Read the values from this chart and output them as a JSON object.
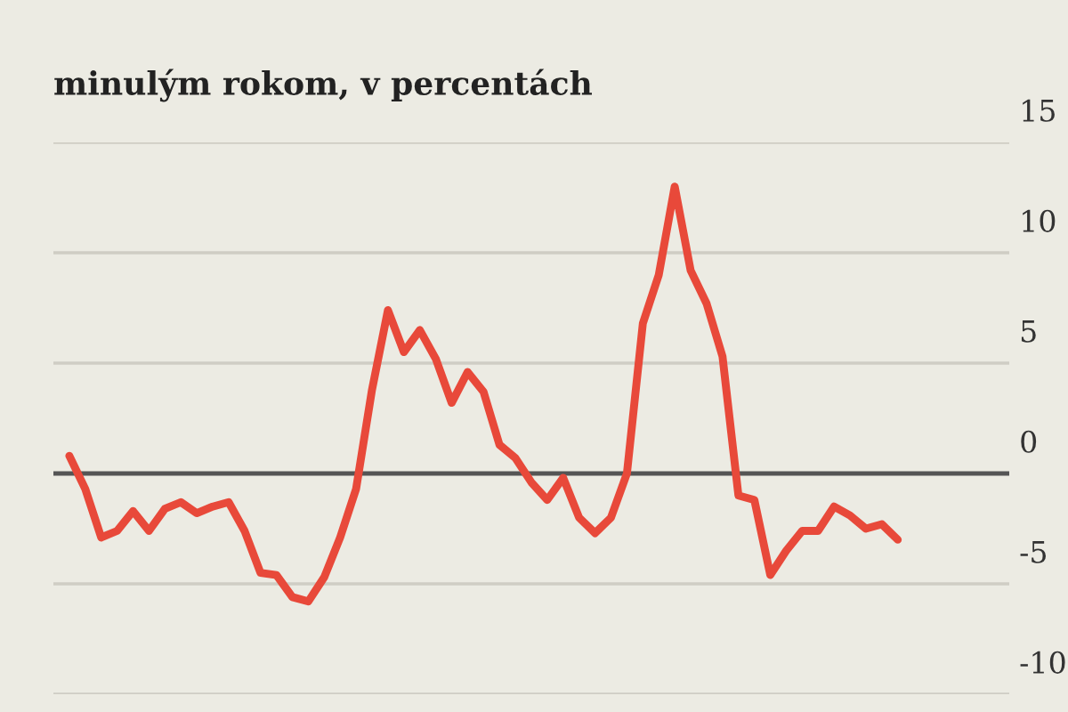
{
  "chart_data": {
    "type": "line",
    "title": "minulým rokom, v percentách",
    "categories": [
      null,
      null,
      null,
      null,
      null,
      null,
      null,
      null,
      null,
      null,
      null,
      null,
      null,
      null,
      null,
      null,
      null,
      null,
      null,
      null,
      null,
      null,
      null,
      null,
      null,
      null,
      null,
      null,
      null,
      null,
      null,
      null,
      null,
      null,
      null,
      null,
      null,
      null,
      null,
      null,
      null,
      null,
      null,
      null,
      null,
      null,
      null,
      null,
      null,
      null,
      null,
      null,
      null
    ],
    "series": [
      {
        "color": "#e8493a",
        "values": [
          0.8,
          -0.7,
          -2.9,
          -2.6,
          -1.7,
          -2.6,
          -1.6,
          -1.3,
          -1.8,
          -1.5,
          -1.3,
          -2.6,
          -4.5,
          -4.6,
          -5.6,
          -5.8,
          -4.7,
          -2.9,
          -0.7,
          3.8,
          7.4,
          5.5,
          6.5,
          5.2,
          3.2,
          4.6,
          3.7,
          1.3,
          0.7,
          -0.4,
          -1.2,
          -0.2,
          -2.0,
          -2.7,
          -2.0,
          0,
          6.8,
          9.0,
          13.0,
          9.2,
          7.7,
          5.3,
          -1.0,
          -1.2,
          -4.6,
          -3.5,
          -2.6,
          -2.6,
          -1.5,
          -1.9,
          -2.5,
          -2.3,
          -3.0
        ]
      }
    ],
    "ylim": [
      -10,
      15
    ],
    "yticks": [
      15,
      10,
      5,
      0,
      -5,
      -10
    ],
    "grid": "y",
    "ref_lines": [
      {
        "axis": "y",
        "value": 0,
        "color": "#555555"
      }
    ],
    "marker": "none",
    "line_style": "solid",
    "tick_labels": "y"
  }
}
